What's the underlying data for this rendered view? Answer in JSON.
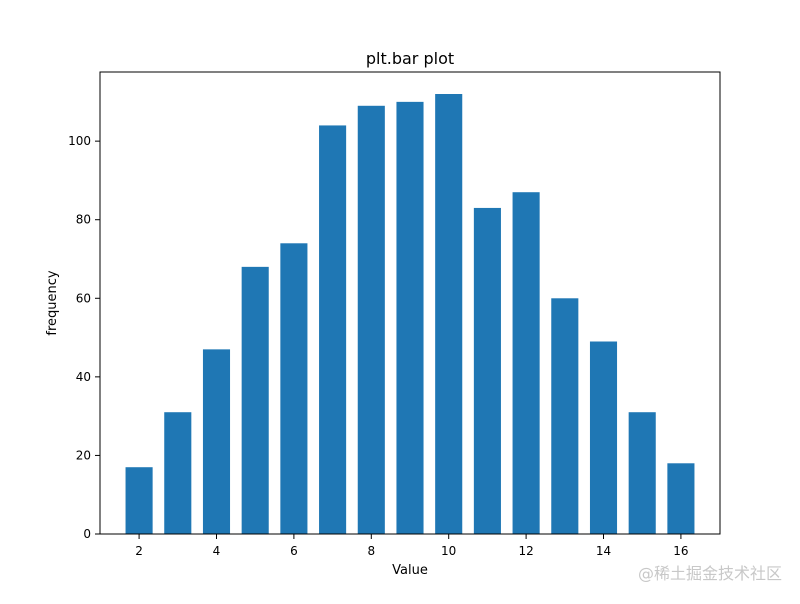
{
  "chart_data": {
    "type": "bar",
    "title": "plt.bar plot",
    "xlabel": "Value",
    "ylabel": "frequency",
    "x": [
      2,
      3,
      4,
      5,
      6,
      7,
      8,
      9,
      10,
      11,
      12,
      13,
      14,
      15,
      16
    ],
    "values": [
      17,
      31,
      47,
      68,
      74,
      104,
      109,
      110,
      112,
      83,
      87,
      60,
      49,
      31,
      18
    ],
    "bar_width": 0.7,
    "xlim": [
      0.99,
      17.01
    ],
    "ylim": [
      0,
      117.6
    ],
    "xticks": [
      2,
      4,
      6,
      8,
      10,
      12,
      14,
      16
    ],
    "yticks": [
      0,
      20,
      40,
      60,
      80,
      100
    ],
    "bar_color": "#1f77b4",
    "grid": false,
    "legend": "none"
  },
  "watermark": {
    "text": "@稀土掘金技术社区"
  }
}
